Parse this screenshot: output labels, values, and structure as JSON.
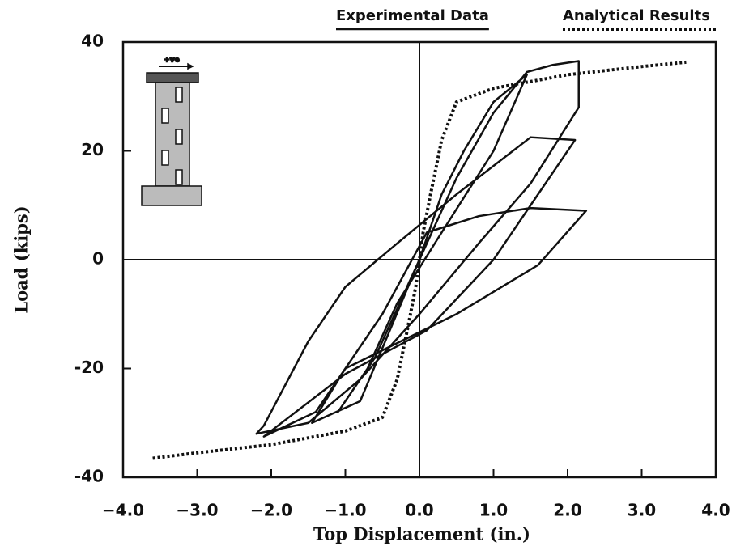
{
  "chart_data": {
    "type": "line",
    "xlabel": "Top Displacement (in.)",
    "ylabel": "Load (kips)",
    "xlim": [
      -4,
      4
    ],
    "ylim": [
      -40,
      40
    ],
    "xticks": [
      {
        "value": -4,
        "label": "−4.0"
      },
      {
        "value": -3,
        "label": "−3.0"
      },
      {
        "value": -2,
        "label": "−2.0"
      },
      {
        "value": -1,
        "label": "−1.0"
      },
      {
        "value": 0,
        "label": "0.0"
      },
      {
        "value": 1,
        "label": "1.0"
      },
      {
        "value": 2,
        "label": "2.0"
      },
      {
        "value": 3,
        "label": "3.0"
      },
      {
        "value": 4,
        "label": "4.0"
      }
    ],
    "yticks": [
      -40,
      -20,
      0,
      20,
      40
    ],
    "series": [
      {
        "name": "Experimental Data",
        "color": "#111111",
        "line_style": "solid",
        "x": [
          0,
          0.3,
          0.6,
          1.0,
          1.45,
          1.0,
          0.3,
          -0.3,
          -0.7,
          -1.1,
          -0.6,
          -0.1,
          0.5,
          1.0,
          1.45,
          1.8,
          2.15,
          2.15,
          1.5,
          0.8,
          0,
          -0.8,
          -1.5,
          -2.2,
          -2.1,
          -1.5,
          -1.0,
          -0.3,
          0.5,
          1.5,
          2.1,
          1.5,
          1.0,
          0.1,
          -1.0,
          -2.1,
          -1.4,
          -0.5,
          0.1,
          0.8,
          1.5,
          2.25,
          1.6,
          0.5,
          -1.0,
          -1.45,
          -0.8,
          0
        ],
        "values": [
          0,
          12,
          20,
          29,
          34,
          20,
          5,
          -8,
          -20,
          -28,
          -18,
          -3,
          15,
          27,
          34.5,
          35.8,
          36.5,
          28,
          14,
          3,
          -10,
          -22,
          -30,
          -32,
          -30.5,
          -15,
          -5,
          3,
          12,
          22.5,
          22,
          10,
          0,
          -13,
          -21,
          -32.5,
          -28,
          -10,
          5,
          8,
          9.5,
          9,
          -1,
          -10,
          -20,
          -30,
          -26,
          0
        ]
      },
      {
        "name": "Analytical Results",
        "color": "#111111",
        "line_style": "dotted",
        "x": [
          -3.6,
          -3,
          -2,
          -1,
          -0.5,
          -0.3,
          -0.15,
          -0.05,
          0.05,
          0.15,
          0.3,
          0.5,
          1,
          2,
          3,
          3.6
        ],
        "values": [
          -36.5,
          -35.5,
          -34,
          -31.5,
          -29,
          -22,
          -12,
          -5,
          5,
          12,
          22,
          29,
          31.5,
          34,
          35.5,
          36.3
        ]
      }
    ]
  }
}
